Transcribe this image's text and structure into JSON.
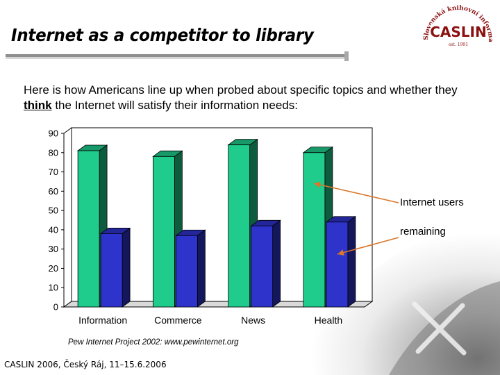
{
  "slide": {
    "title": "Internet as a competitor to library",
    "intro_before": "Here is how Americans line up when probed about specific topics and whether they ",
    "intro_keyword": "think",
    "intro_after": " the Internet will satisfy their information needs:",
    "source": "Pew Internet Project 2002: www.pewinternet.org",
    "footer": "CASLIN 2006, Český Ráj, 11–15.6.2006"
  },
  "logo": {
    "name": "CASLIN",
    "est": "est. 1991",
    "ring_text": "Slovenská knihovní informační síť · Česká a"
  },
  "colors": {
    "series_1": "#1fcc8c",
    "series_2": "#2e33cc",
    "arrow": "#d9762a",
    "title_rule": "#8f8f8f",
    "logo": "#8b1010"
  },
  "chart_data": {
    "type": "bar",
    "categories": [
      "Information",
      "Commerce",
      "News",
      "Health"
    ],
    "series": [
      {
        "name": "Internet users",
        "values": [
          81,
          78,
          84,
          80
        ]
      },
      {
        "name": "remaining",
        "values": [
          38,
          37,
          42,
          44
        ]
      }
    ],
    "y_ticks": [
      "0",
      "10",
      "20",
      "30",
      "40",
      "50",
      "60",
      "70",
      "80",
      "90"
    ],
    "ylim": [
      0,
      90
    ],
    "title": "",
    "xlabel": "",
    "ylabel": "",
    "legend": "right, arrow callouts",
    "grid": false,
    "style": "3d"
  }
}
